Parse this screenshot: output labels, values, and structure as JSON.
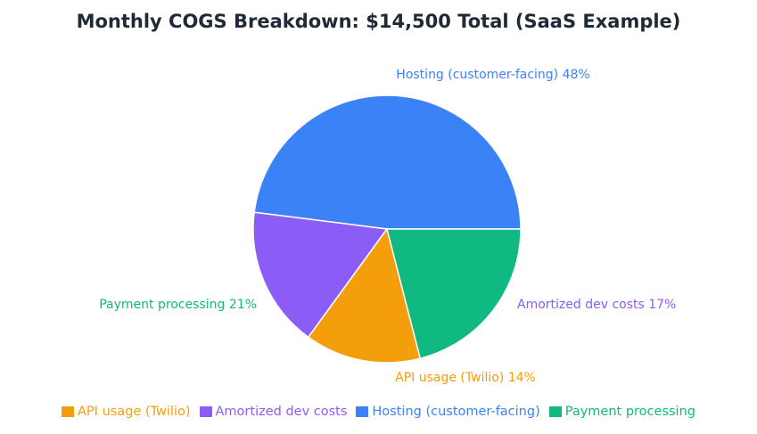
{
  "chart_data": {
    "type": "pie",
    "title": "Monthly COGS Breakdown: $14,500 Total (SaaS Example)",
    "slices": [
      {
        "name": "Hosting (customer-facing)",
        "value": 48,
        "label": "Hosting (customer-facing) 48%",
        "color": "#3b82f6"
      },
      {
        "name": "Amortized dev costs",
        "value": 17,
        "label": "Amortized dev costs 17%",
        "color": "#8b5cf6"
      },
      {
        "name": "API usage (Twilio)",
        "value": 14,
        "label": "API usage (Twilio) 14%",
        "color": "#f59e0b"
      },
      {
        "name": "Payment processing",
        "value": 21,
        "label": "Payment processing 21%",
        "color": "#10b981"
      }
    ],
    "legend": {
      "position": "bottom",
      "entries": [
        {
          "name": "API usage (Twilio)",
          "color": "#f59e0b"
        },
        {
          "name": "Amortized dev costs",
          "color": "#8b5cf6"
        },
        {
          "name": "Hosting (customer-facing)",
          "color": "#3b82f6"
        },
        {
          "name": "Payment processing",
          "color": "#10b981"
        }
      ]
    }
  }
}
